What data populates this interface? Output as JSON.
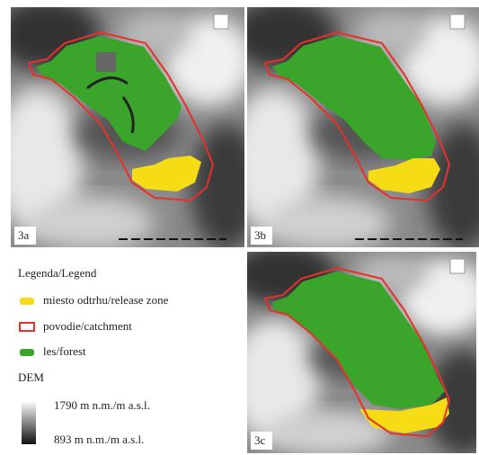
{
  "panels": [
    {
      "label": "3a"
    },
    {
      "label": "3b"
    },
    {
      "label": "3c"
    }
  ],
  "legend": {
    "title": "Legenda/Legend",
    "items": [
      "miesto odtrhu/release zone",
      "povodie/catchment",
      "les/forest"
    ],
    "dem_title": "DEM",
    "dem_max": "1790 m n.m./m a.s.l.",
    "dem_min": "893 m n.m./m a.s.l."
  }
}
